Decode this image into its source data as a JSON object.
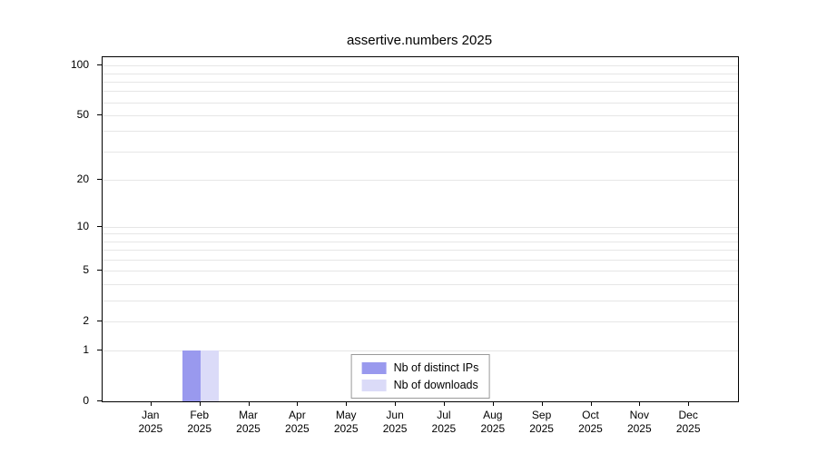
{
  "chart_data": {
    "type": "bar",
    "title": "assertive.numbers 2025",
    "categories": [
      "Jan",
      "Feb",
      "Mar",
      "Apr",
      "May",
      "Jun",
      "Jul",
      "Aug",
      "Sep",
      "Oct",
      "Nov",
      "Dec"
    ],
    "year": "2025",
    "series": [
      {
        "name": "Nb of distinct IPs",
        "color": "#9999ee",
        "values": [
          0,
          1,
          0,
          0,
          0,
          0,
          0,
          0,
          0,
          0,
          0,
          0
        ]
      },
      {
        "name": "Nb of downloads",
        "color": "#dbdbf8",
        "values": [
          0,
          1,
          0,
          0,
          0,
          0,
          0,
          0,
          0,
          0,
          0,
          0
        ]
      }
    ],
    "yticks": [
      0,
      1,
      2,
      5,
      10,
      20,
      50,
      100
    ],
    "gridline_values": [
      1,
      2,
      3,
      4,
      5,
      6,
      7,
      8,
      9,
      10,
      20,
      30,
      40,
      50,
      60,
      70,
      80,
      90,
      100
    ],
    "scale": "log1p",
    "ylim": [
      0,
      112
    ],
    "xlabel": "",
    "ylabel": "",
    "legend_position": "bottom-center",
    "grid": "horizontal"
  }
}
